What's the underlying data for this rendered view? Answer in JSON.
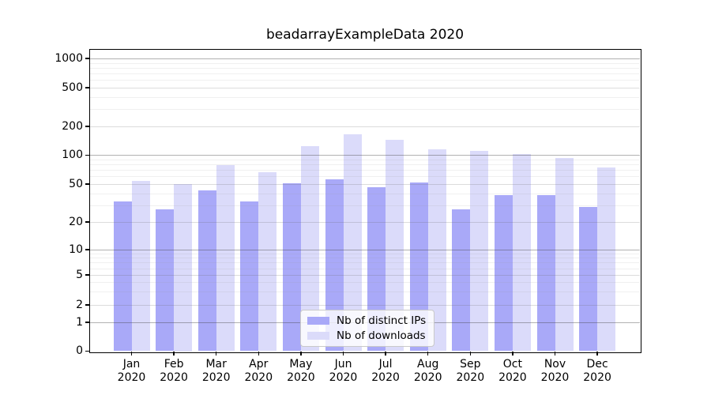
{
  "chart_data": {
    "type": "bar",
    "title": "beadarrayExampleData 2020",
    "categories": [
      "Jan 2020",
      "Feb 2020",
      "Mar 2020",
      "Apr 2020",
      "May 2020",
      "Jun 2020",
      "Jul 2020",
      "Aug 2020",
      "Sep 2020",
      "Oct 2020",
      "Nov 2020",
      "Dec 2020"
    ],
    "x_axis": {
      "tick_labels": [
        [
          "Jan",
          "2020"
        ],
        [
          "Feb",
          "2020"
        ],
        [
          "Mar",
          "2020"
        ],
        [
          "Apr",
          "2020"
        ],
        [
          "May",
          "2020"
        ],
        [
          "Jun",
          "2020"
        ],
        [
          "Jul",
          "2020"
        ],
        [
          "Aug",
          "2020"
        ],
        [
          "Sep",
          "2020"
        ],
        [
          "Oct",
          "2020"
        ],
        [
          "Nov",
          "2020"
        ],
        [
          "Dec",
          "2020"
        ]
      ]
    },
    "y_axis": {
      "scale": "log-like",
      "range": [
        0,
        1000
      ],
      "ticks": [
        0,
        1,
        2,
        5,
        10,
        20,
        50,
        100,
        200,
        500,
        1000
      ],
      "tick_labels": [
        "0",
        "1",
        "2",
        "5",
        "10",
        "20",
        "50",
        "100",
        "200",
        "500",
        "1000"
      ]
    },
    "series": [
      {
        "name": "Nb of distinct IPs",
        "color": "#a9a9f8",
        "values": [
          33,
          27,
          43,
          33,
          51,
          56,
          46,
          52,
          27,
          38,
          38,
          29
        ]
      },
      {
        "name": "Nb of downloads",
        "color": "#dbdbfa",
        "values": [
          54,
          50,
          79,
          66,
          125,
          165,
          146,
          116,
          112,
          103,
          93,
          74
        ]
      }
    ],
    "legend": {
      "position": "bottom-center",
      "entries": [
        "Nb of distinct IPs",
        "Nb of downloads"
      ]
    },
    "grid": true,
    "background_color": "#ffffff"
  }
}
